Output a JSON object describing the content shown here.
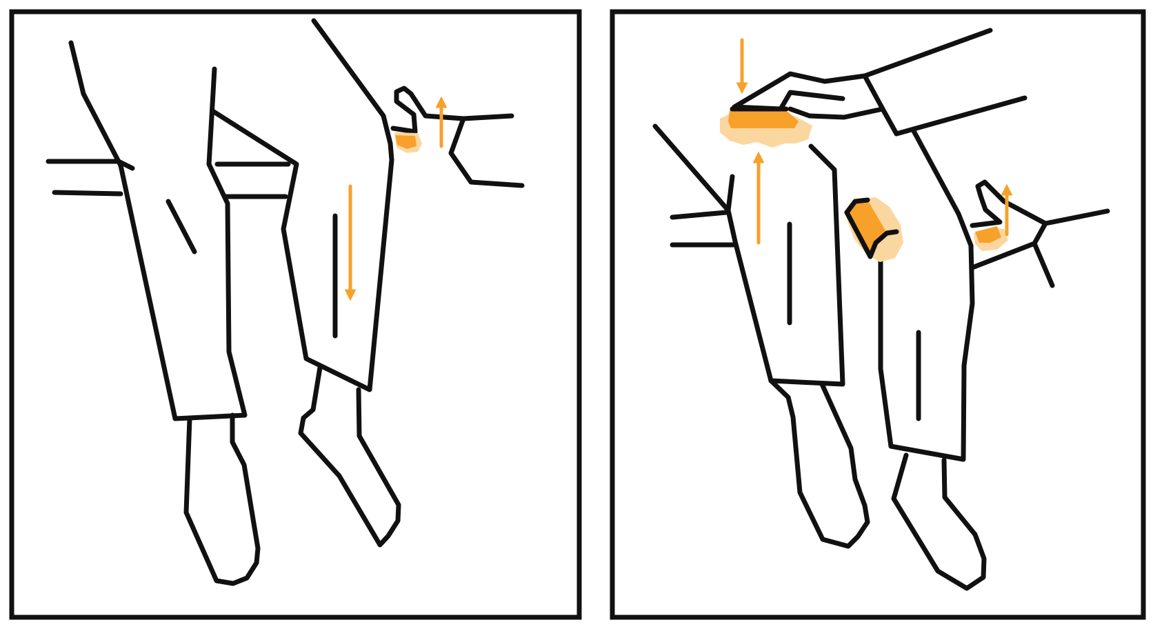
{
  "figure": {
    "panel_count": 2,
    "panels": [
      {
        "id": "left",
        "elements": [
          "seated-legs",
          "right-hand-at-knee-back",
          "pressure-point-back-of-knee"
        ]
      },
      {
        "id": "right",
        "elements": [
          "seated-legs",
          "left-hand-on-knee",
          "right-hand-behind-knee",
          "pressure-point-knee-top",
          "pressure-point-calf",
          "pressure-point-back-of-knee"
        ]
      }
    ],
    "colors": {
      "outline": "#111111",
      "accent": "#F7A12B",
      "accent_soft": "#FBD7A0",
      "background": "#FFFFFF"
    },
    "icons": [
      "up-arrow",
      "down-arrow"
    ]
  }
}
